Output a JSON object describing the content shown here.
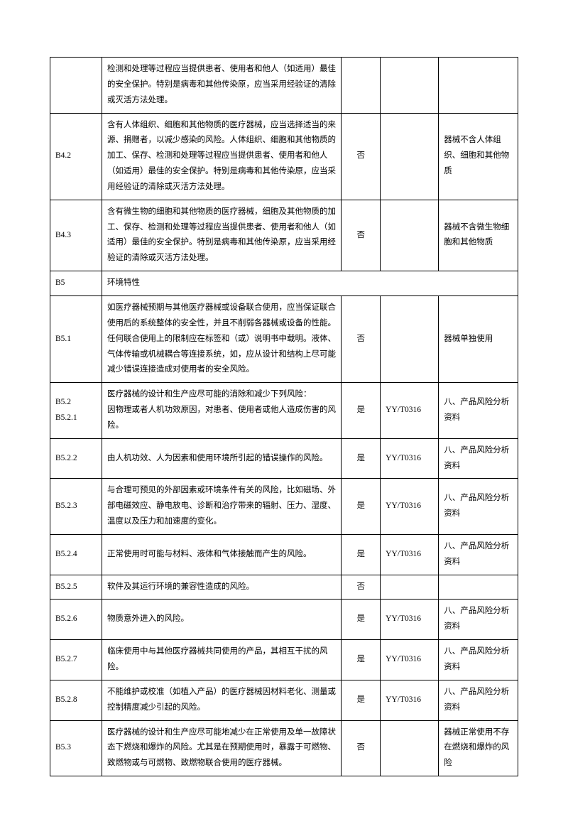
{
  "table": {
    "colors": {
      "border": "#000000",
      "background": "#ffffff",
      "text": "#000000"
    },
    "fontSize": 11.5,
    "lineHeight": 1.9,
    "columns": {
      "id_width": 64,
      "desc_width": 296,
      "yn_width": 48,
      "std_width": 72,
      "doc_width": 98
    },
    "rows": [
      {
        "id": "",
        "desc": "检测和处理等过程应当提供患者、使用者和他人（如适用）最佳的安全保护。特别是病毒和其他传染原，应当采用经验证的清除或灭活方法处理。",
        "yn": "",
        "std": "",
        "doc": ""
      },
      {
        "id": "B4.2",
        "desc": "含有人体组织、细胞和其他物质的医疗器械，应当选择适当的来源、捐赠者，以减少感染的风险。人体组织、细胞和其他物质的加工、保存、检测和处理等过程应当提供患者、使用者和他人（如适用）最佳的安全保护。特别是病毒和其他传染原，应当采用经验证的清除或灭活方法处理。",
        "yn": "否",
        "std": "",
        "doc": "器械不含人体组织、细胞和其他物质"
      },
      {
        "id": "B4.3",
        "desc": "含有微生物的细胞和其他物质的医疗器械，细胞及其他物质的加工、保存、检测和处理等过程应当提供患者、使用者和他人（如适用）最佳的安全保护。特别是病毒和其他传染原，应当采用经验证的清除或灭活方法处理。",
        "yn": "否",
        "std": "",
        "doc": "器械不含微生物细胞和其他物质"
      },
      {
        "id": "B5",
        "desc": "环境特性",
        "section": true
      },
      {
        "id": "B5.1",
        "desc": "如医疗器械预期与其他医疗器械或设备联合使用，应当保证联合使用后的系统整体的安全性，并且不削弱各器械或设备的性能。任何联合使用上的限制应在标签和（或）说明书中载明。液体、气体传输或机械耦合等连接系统，如，应从设计和结构上尽可能减少错误连接造成对使用者的安全风险。",
        "yn": "否",
        "std": "",
        "doc": "器械单独使用"
      },
      {
        "id": "B5.2\nB5.2.1",
        "desc": "医疗器械的设计和生产应尽可能的消除和减少下列风险：\n因物理或者人机功效原因，对患者、使用者或他人造成伤害的风险。",
        "yn": "是",
        "std": "YY/T0316",
        "doc": "八、产品风险分析资料"
      },
      {
        "id": "B5.2.2",
        "desc": "由人机功效、人为因素和使用环境所引起的错误操作的风险。",
        "yn": "是",
        "std": "YY/T0316",
        "doc": "八、产品风险分析资料"
      },
      {
        "id": "B5.2.3",
        "desc": "与合理可预见的外部因素或环境条件有关的风险，比如磁场、外部电磁效应、静电放电、诊断和治疗带来的辐射、压力、湿度、温度以及压力和加速度的变化。",
        "yn": "是",
        "std": "YY/T0316",
        "doc": "八、产品风险分析资料"
      },
      {
        "id": "B5.2.4",
        "desc": "正常使用时可能与材料、液体和气体接触而产生的风险。",
        "yn": "是",
        "std": "YY/T0316",
        "doc": "八、产品风险分析资料"
      },
      {
        "id": "B5.2.5",
        "desc": "软件及其运行环境的兼容性造成的风险。",
        "yn": "否",
        "std": "",
        "doc": ""
      },
      {
        "id": "B5.2.6",
        "desc": "物质意外进入的风险。",
        "yn": "是",
        "std": "YY/T0316",
        "doc": "八、产品风险分析资料"
      },
      {
        "id": "B5.2.7",
        "desc": "临床使用中与其他医疗器械共同使用的产品，其相互干扰的风险。",
        "yn": "是",
        "std": "YY/T0316",
        "doc": "八、产品风险分析资料"
      },
      {
        "id": "B5.2.8",
        "desc": "不能维护或校准（如植入产品）的医疗器械因材料老化、测量或控制精度减少引起的风险。",
        "yn": "是",
        "std": "YY/T0316",
        "doc": "八、产品风险分析资料"
      },
      {
        "id": "B5.3",
        "desc": "医疗器械的设计和生产应尽可能地减少在正常使用及单一故障状态下燃烧和爆炸的风险。尤其是在预期使用时，暴露于可燃物、致燃物或与可燃物、致燃物联合使用的医疗器械。",
        "yn": "否",
        "std": "",
        "doc": "器械正常使用不存在燃烧和爆炸的风险"
      }
    ]
  }
}
